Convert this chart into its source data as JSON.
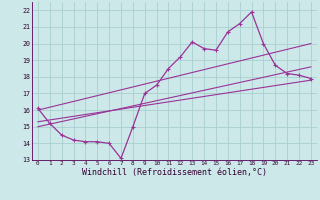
{
  "bg_color": "#cce8e8",
  "line_color": "#993399",
  "grid_color": "#aacfcf",
  "xlabel": "Windchill (Refroidissement éolien,°C)",
  "xlabel_fontsize": 6.0,
  "ylabel_ticks": [
    13,
    14,
    15,
    16,
    17,
    18,
    19,
    20,
    21,
    22
  ],
  "xlabel_ticks": [
    0,
    1,
    2,
    3,
    4,
    5,
    6,
    7,
    8,
    9,
    10,
    11,
    12,
    13,
    14,
    15,
    16,
    17,
    18,
    19,
    20,
    21,
    22,
    23
  ],
  "xlim": [
    -0.5,
    23.5
  ],
  "ylim": [
    13,
    22.5
  ],
  "zigzag_x": [
    0,
    1,
    2,
    3,
    4,
    5,
    6,
    7,
    8,
    9,
    10,
    11,
    12,
    13,
    14,
    15,
    16,
    17,
    18,
    19,
    20,
    21,
    22,
    23
  ],
  "zigzag_y": [
    16.1,
    15.2,
    14.5,
    14.2,
    14.1,
    14.1,
    14.0,
    13.1,
    15.0,
    17.0,
    17.5,
    18.5,
    19.2,
    20.1,
    19.7,
    19.6,
    20.7,
    21.2,
    21.9,
    20.0,
    18.7,
    18.2,
    18.1,
    17.9
  ],
  "line1_x": [
    0,
    23
  ],
  "line1_y": [
    15.3,
    17.8
  ],
  "line2_x": [
    0,
    23
  ],
  "line2_y": [
    15.0,
    18.6
  ],
  "line3_x": [
    0,
    23
  ],
  "line3_y": [
    16.0,
    20.0
  ]
}
